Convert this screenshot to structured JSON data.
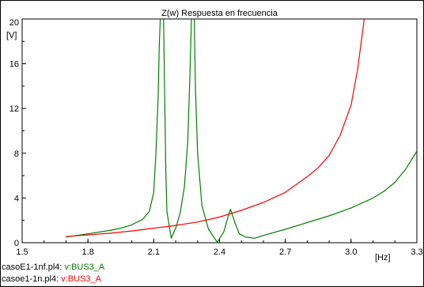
{
  "chart_data": {
    "type": "line",
    "title": "Z(w) Respuesta en frecuencia",
    "xlabel": "[Hz]",
    "ylabel": "[V]",
    "xlim": [
      1.5,
      3.3
    ],
    "ylim": [
      0,
      20
    ],
    "x_ticks": [
      "1.5",
      "1.8",
      "2.1",
      "2.4",
      "2.7",
      "3.0",
      "3.3"
    ],
    "y_ticks": [
      "0",
      "4",
      "8",
      "12",
      "16",
      "20"
    ],
    "grid": false,
    "series": [
      {
        "name": "v:BUS3_A",
        "file": "casoE1-1nf.pl4:",
        "color": "#008000",
        "points": [
          [
            1.7,
            0.5
          ],
          [
            1.8,
            0.8
          ],
          [
            1.9,
            1.1
          ],
          [
            1.95,
            1.3
          ],
          [
            2.0,
            1.6
          ],
          [
            2.05,
            2.1
          ],
          [
            2.08,
            2.8
          ],
          [
            2.1,
            4.5
          ],
          [
            2.11,
            8.0
          ],
          [
            2.12,
            13.0
          ],
          [
            2.125,
            17.5
          ],
          [
            2.13,
            20.0
          ],
          [
            null,
            null
          ],
          [
            2.145,
            20.0
          ],
          [
            2.15,
            13.0
          ],
          [
            2.155,
            6.5
          ],
          [
            2.16,
            2.8
          ],
          [
            2.18,
            0.4
          ],
          [
            2.2,
            1.3
          ],
          [
            2.22,
            2.6
          ],
          [
            2.24,
            5.0
          ],
          [
            2.255,
            9.0
          ],
          [
            2.265,
            15.0
          ],
          [
            2.272,
            20.0
          ],
          [
            null,
            null
          ],
          [
            2.285,
            20.0
          ],
          [
            2.29,
            14.0
          ],
          [
            2.3,
            8.0
          ],
          [
            2.32,
            3.3
          ],
          [
            2.35,
            1.2
          ],
          [
            2.39,
            0.05
          ],
          [
            2.42,
            1.0
          ],
          [
            2.44,
            2.4
          ],
          [
            2.45,
            3.0
          ],
          [
            2.47,
            1.8
          ],
          [
            2.49,
            0.8
          ],
          [
            2.52,
            0.5
          ],
          [
            2.56,
            0.4
          ],
          [
            2.6,
            0.65
          ],
          [
            2.7,
            1.2
          ],
          [
            2.8,
            1.8
          ],
          [
            2.9,
            2.4
          ],
          [
            3.0,
            3.1
          ],
          [
            3.1,
            4.0
          ],
          [
            3.15,
            4.6
          ],
          [
            3.2,
            5.4
          ],
          [
            3.25,
            6.6
          ],
          [
            3.3,
            8.2
          ]
        ]
      },
      {
        "name": "v:BUS3_A",
        "file": "casoe1-1n.pl4:",
        "color": "#ff0000",
        "points": [
          [
            1.7,
            0.55
          ],
          [
            1.8,
            0.7
          ],
          [
            1.9,
            0.85
          ],
          [
            2.0,
            1.05
          ],
          [
            2.1,
            1.3
          ],
          [
            2.2,
            1.55
          ],
          [
            2.3,
            1.85
          ],
          [
            2.4,
            2.3
          ],
          [
            2.5,
            2.9
          ],
          [
            2.6,
            3.6
          ],
          [
            2.7,
            4.5
          ],
          [
            2.8,
            5.9
          ],
          [
            2.85,
            6.7
          ],
          [
            2.9,
            7.8
          ],
          [
            2.95,
            9.6
          ],
          [
            3.0,
            12.3
          ],
          [
            3.03,
            15.5
          ],
          [
            3.06,
            20.0
          ]
        ]
      }
    ]
  }
}
